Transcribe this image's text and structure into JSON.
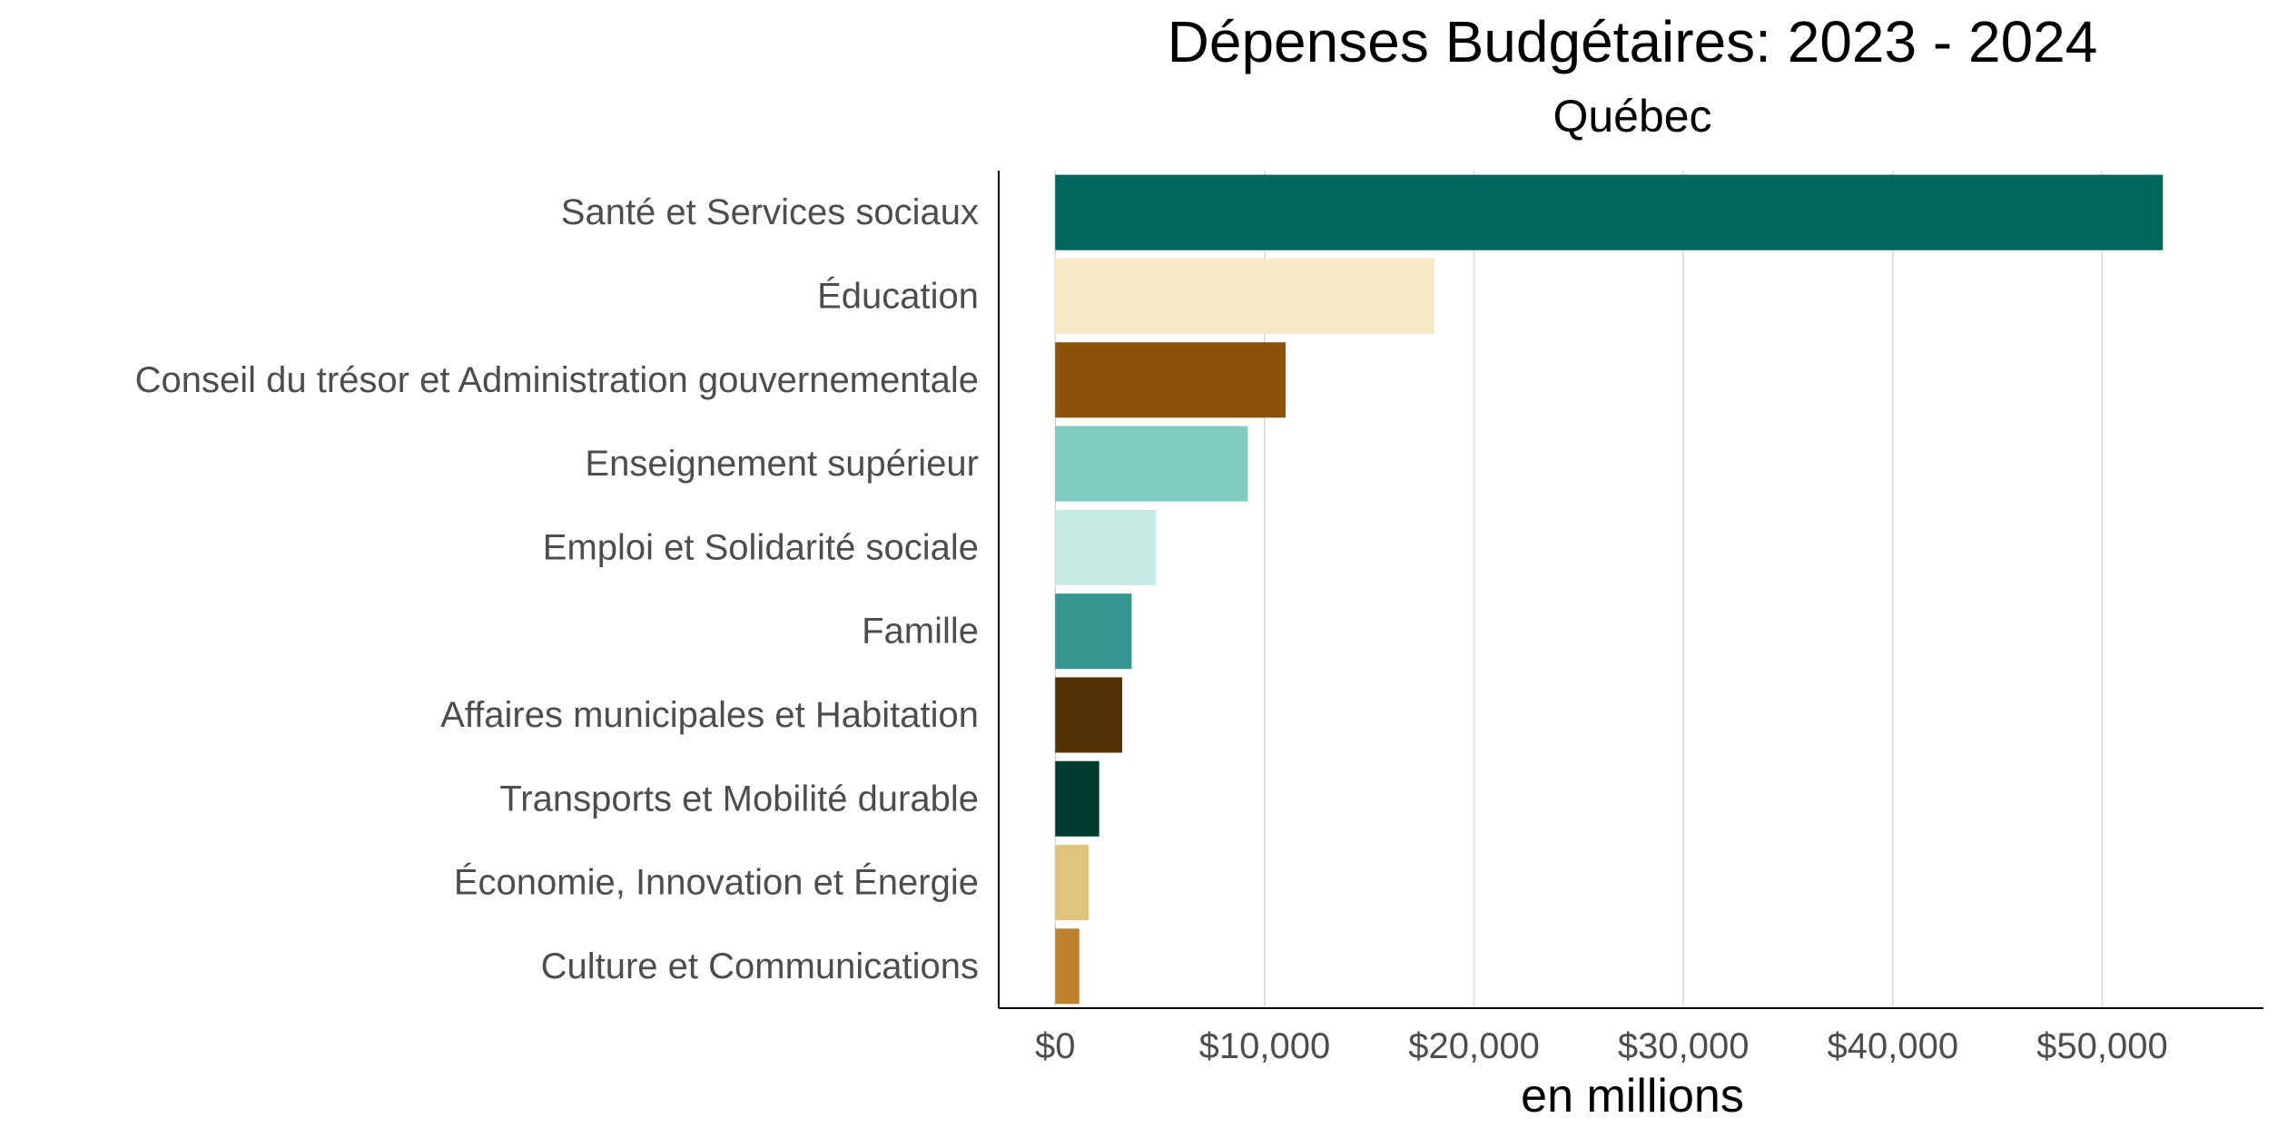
{
  "chart_data": {
    "type": "bar",
    "orientation": "horizontal",
    "title": "Dépenses Budgétaires: 2023 - 2024",
    "subtitle": "Québec",
    "xlabel": "en millions",
    "ylabel": "",
    "xlim": [
      -2700,
      57700
    ],
    "x_ticks": [
      0,
      10000,
      20000,
      30000,
      40000,
      50000
    ],
    "x_tick_labels": [
      "$0",
      "$10,000",
      "$20,000",
      "$30,000",
      "$40,000",
      "$50,000"
    ],
    "grid": "vertical major",
    "legend": "none",
    "categories": [
      "Santé et Services sociaux",
      "Éducation",
      "Conseil du trésor et Administration gouvernementale",
      "Enseignement supérieur",
      "Emploi et Solidarité sociale",
      "Famille",
      "Affaires municipales et Habitation",
      "Transports et Mobilité durable",
      "Économie, Innovation et Énergie",
      "Culture et Communications"
    ],
    "values": [
      52900,
      18100,
      11000,
      9200,
      4800,
      3650,
      3200,
      2100,
      1600,
      1150
    ],
    "colors": [
      "#01665E",
      "#F6E8C3",
      "#8C510A",
      "#80CDC1",
      "#C7EAE5",
      "#35978F",
      "#543005",
      "#003C30",
      "#DFC27D",
      "#BF812D"
    ]
  }
}
